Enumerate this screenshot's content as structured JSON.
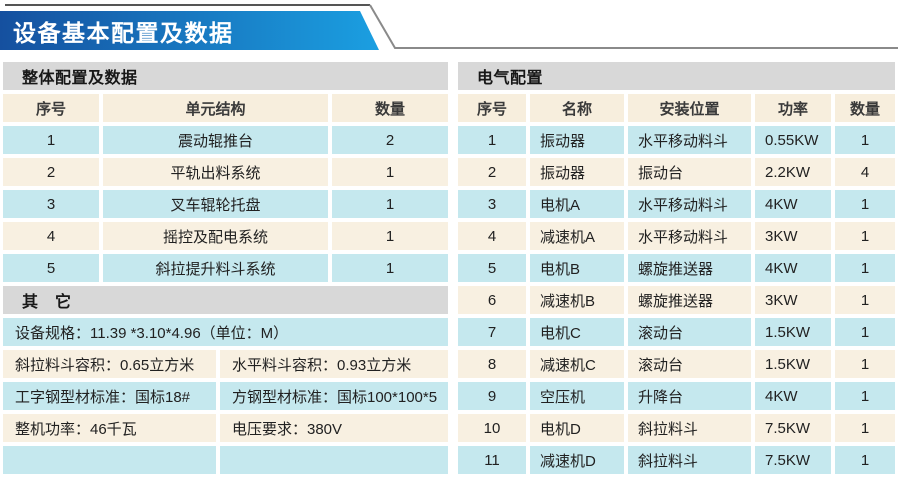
{
  "banner": {
    "title": "设备基本配置及数据"
  },
  "colors": {
    "banner_gradient_start": "#15509f",
    "banner_gradient_end": "#1b9fe1",
    "row_blue": "#c5e8ee",
    "row_cream": "#f8f0e1",
    "header_cream": "#f7eedd",
    "section_gray": "#d8d8d8"
  },
  "left_table": {
    "section_title": "整体配置及数据",
    "columns": [
      "序号",
      "单元结构",
      "数量"
    ],
    "rows": [
      {
        "no": "1",
        "name": "震动辊推台",
        "qty": "2"
      },
      {
        "no": "2",
        "name": "平轨出料系统",
        "qty": "1"
      },
      {
        "no": "3",
        "name": "叉车辊轮托盘",
        "qty": "1"
      },
      {
        "no": "4",
        "name": "摇控及配电系统",
        "qty": "1"
      },
      {
        "no": "5",
        "name": "斜拉提升料斗系统",
        "qty": "1"
      }
    ]
  },
  "other_section": {
    "title": "其　它",
    "rows": [
      {
        "cells": [
          "设备规格：11.39 *3.10*4.96（单位：M）"
        ]
      },
      {
        "cells": [
          "斜拉料斗容积：0.65立方米",
          "水平料斗容积：0.93立方米"
        ]
      },
      {
        "cells": [
          "工字钢型材标准：国标18#",
          "方钢型材标准：国标100*100*5"
        ]
      },
      {
        "cells": [
          "整机功率：46千瓦",
          "电压要求：380V"
        ]
      },
      {
        "cells": [
          "",
          ""
        ]
      }
    ]
  },
  "right_table": {
    "section_title": "电气配置",
    "columns": [
      "序号",
      "名称",
      "安装位置",
      "功率",
      "数量"
    ],
    "rows": [
      [
        "1",
        "振动器",
        "水平移动料斗",
        "0.55KW",
        "1"
      ],
      [
        "2",
        "振动器",
        "振动台",
        "2.2KW",
        "4"
      ],
      [
        "3",
        "电机A",
        "水平移动料斗",
        "4KW",
        "1"
      ],
      [
        "4",
        "减速机A",
        "水平移动料斗",
        "3KW",
        "1"
      ],
      [
        "5",
        "电机B",
        "螺旋推送器",
        "4KW",
        "1"
      ],
      [
        "6",
        "减速机B",
        "螺旋推送器",
        "3KW",
        "1"
      ],
      [
        "7",
        "电机C",
        "滚动台",
        "1.5KW",
        "1"
      ],
      [
        "8",
        "减速机C",
        "滚动台",
        "1.5KW",
        "1"
      ],
      [
        "9",
        "空压机",
        "升降台",
        "4KW",
        "1"
      ],
      [
        "10",
        "电机D",
        "斜拉料斗",
        "7.5KW",
        "1"
      ],
      [
        "11",
        "减速机D",
        "斜拉料斗",
        "7.5KW",
        "1"
      ]
    ]
  }
}
